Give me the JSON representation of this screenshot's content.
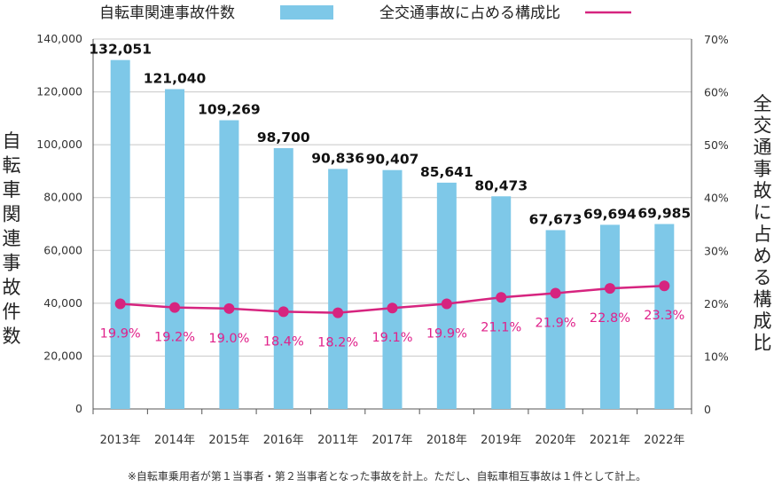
{
  "legend": {
    "bar": "自転車関連事故件数",
    "line": "全交通事故に占める構成比"
  },
  "axis_titles": {
    "left": "自転車関連事故件数",
    "right": "全交通事故に占める構成比"
  },
  "footnote": "※自転車乗用者が第１当事者・第２当事者となった事故を計上。ただし、自転車相互事故は１件として計上。",
  "colors": {
    "bar": "#7ec8e8",
    "line": "#d6247f",
    "grid": "#c8c8c8",
    "pct_text": "#e0218a"
  },
  "chart_data": {
    "type": "bar",
    "categories": [
      "2013年",
      "2014年",
      "2015年",
      "2016年",
      "2011年",
      "2017年",
      "2018年",
      "2019年",
      "2020年",
      "2021年",
      "2022年"
    ],
    "series": [
      {
        "name": "自転車関連事故件数",
        "type": "bar",
        "axis": "left",
        "values": [
          132051,
          121040,
          109269,
          98700,
          90836,
          90407,
          85641,
          80473,
          67673,
          69694,
          69985
        ],
        "labels": [
          "132,051",
          "121,040",
          "109,269",
          "98,700",
          "90,836",
          "90,407",
          "85,641",
          "80,473",
          "67,673",
          "69,694",
          "69,985"
        ]
      },
      {
        "name": "全交通事故に占める構成比",
        "type": "line",
        "axis": "right",
        "values": [
          19.9,
          19.2,
          19.0,
          18.4,
          18.2,
          19.1,
          19.9,
          21.1,
          21.9,
          22.8,
          23.3
        ],
        "labels": [
          "19.9%",
          "19.2%",
          "19.0%",
          "18.4%",
          "18.2%",
          "19.1%",
          "19.9%",
          "21.1%",
          "21.9%",
          "22.8%",
          "23.3%"
        ]
      }
    ],
    "y_left": {
      "ylim": [
        0,
        140000
      ],
      "ticks": [
        0,
        20000,
        40000,
        60000,
        80000,
        100000,
        120000,
        140000
      ],
      "tick_labels": [
        "0",
        "20,000",
        "40,000",
        "60,000",
        "80,000",
        "100,000",
        "120,000",
        "140,000"
      ]
    },
    "y_right": {
      "ylim": [
        0,
        70
      ],
      "ticks": [
        0,
        10,
        20,
        30,
        40,
        50,
        60,
        70
      ],
      "tick_labels": [
        "0",
        "10%",
        "20%",
        "30%",
        "40%",
        "50%",
        "60%",
        "70%"
      ]
    },
    "grid": true,
    "legend_position": "top"
  }
}
